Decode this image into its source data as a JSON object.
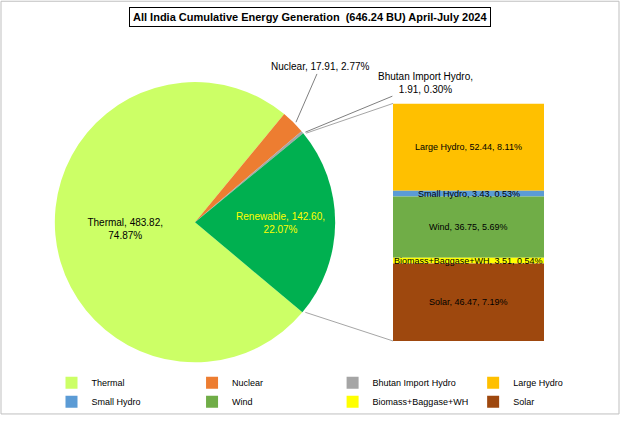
{
  "chart_data": [
    {
      "type": "pie",
      "title": "All India Cumulative Energy Generation  (646.24 BU) April-July 2024",
      "categories": [
        "Thermal",
        "Nuclear",
        "Bhutan Import Hydro",
        "Renewable"
      ],
      "values": [
        483.82,
        17.91,
        1.91,
        142.6
      ],
      "value_labels": [
        "Thermal, 483.82,\n74.87%",
        "Nuclear, 17.91, 2.77%",
        "Bhutan Import Hydro,\n1.91, 0.30%",
        "Renewable, 142.60,\n22.07%"
      ],
      "colors": [
        "#CCFF66",
        "#ED7D31",
        "#A5A5A5",
        "#00B050"
      ],
      "data_labels": true,
      "legend": "bottom"
    },
    {
      "type": "bar",
      "stacked": true,
      "categories": [
        null
      ],
      "series": [
        {
          "name": "Large Hydro",
          "color": "#FFC000",
          "values": [
            52.44
          ],
          "value_labels": [
            "Large Hydro, 52.44, 8.11%"
          ]
        },
        {
          "name": "Small Hydro",
          "color": "#5B9BD5",
          "values": [
            3.43
          ],
          "value_labels": [
            "Small Hydro, 3.43, 0.53%"
          ]
        },
        {
          "name": "Wind",
          "color": "#70AD47",
          "values": [
            36.75
          ],
          "value_labels": [
            "Wind, 36.75, 5.69%"
          ]
        },
        {
          "name": "Biomass+Baggase+WH",
          "color": "#FFFF00",
          "values": [
            3.51
          ],
          "value_labels": [
            "Biomass+Baggase+WH, 3.51, 0.54%"
          ]
        },
        {
          "name": "Solar",
          "color": "#9E480E",
          "values": [
            46.47
          ],
          "value_labels": [
            "Solar, 46.47, 7.19%"
          ]
        }
      ],
      "ylim": [
        0,
        142.6
      ],
      "tick_labels": false,
      "data_labels": true,
      "legend": "bottom"
    }
  ]
}
